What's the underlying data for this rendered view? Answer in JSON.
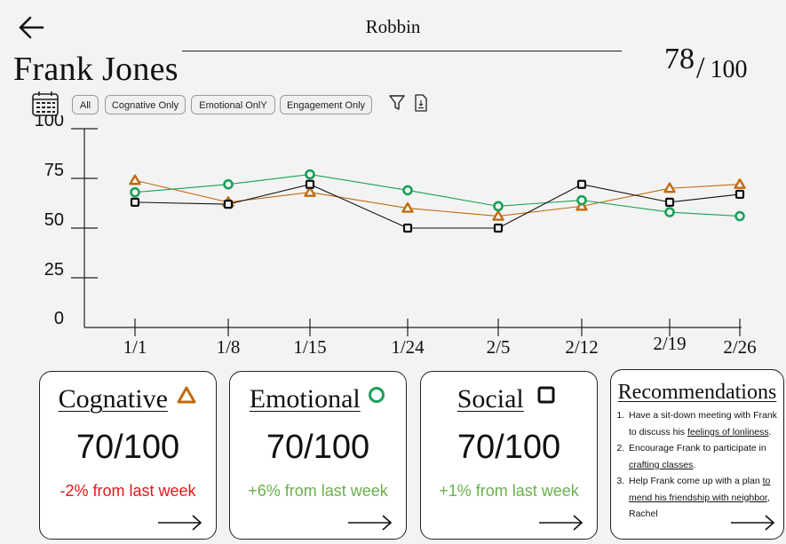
{
  "header": {
    "user_name": "Robbin",
    "patient_name": "Frank Jones",
    "score": {
      "value": "78",
      "slash": "/",
      "max": "100"
    }
  },
  "filters": [
    {
      "id": "all",
      "label": "All"
    },
    {
      "id": "cognitive",
      "label": "Cognative Only"
    },
    {
      "id": "emotional",
      "label": "Emotional OnlY"
    },
    {
      "id": "engagement",
      "label": "Engagement Only"
    }
  ],
  "icons": {
    "back": "arrow-left-icon",
    "calendar": "calendar-icon",
    "filter": "funnel-filter-icon",
    "export": "document-download-icon"
  },
  "colors": {
    "cognitive": "#c06a10",
    "emotional": "#1aa05a",
    "social": "#111111",
    "negative": "#e01818",
    "positive": "#6ab04c"
  },
  "chart_data": {
    "type": "line",
    "categories": [
      "1/1",
      "1/8",
      "1/15",
      "1/24",
      "2/5",
      "2/12",
      "2/19",
      "2/26"
    ],
    "ylim": [
      0,
      100
    ],
    "yticks": [
      100,
      75,
      50,
      25,
      0
    ],
    "grid": false,
    "series": [
      {
        "name": "Cognative",
        "marker": "triangle",
        "color": "#c06a10",
        "values": [
          74,
          63,
          68,
          60,
          56,
          61,
          70,
          72
        ]
      },
      {
        "name": "Emotional",
        "marker": "circle",
        "color": "#1aa05a",
        "values": [
          68,
          72,
          77,
          69,
          61,
          64,
          58,
          56
        ]
      },
      {
        "name": "Social",
        "marker": "square",
        "color": "#111111",
        "values": [
          63,
          62,
          72,
          50,
          50,
          72,
          63,
          67
        ]
      }
    ]
  },
  "cards": [
    {
      "title": "Cognative",
      "value": "70/100",
      "delta": "-2% from last week",
      "tone": "negative",
      "marker": "triangle"
    },
    {
      "title": "Emotional",
      "value": "70/100",
      "delta": "+6% from last week",
      "tone": "positive",
      "marker": "circle"
    },
    {
      "title": "Social",
      "value": "70/100",
      "delta": "+1% from last week",
      "tone": "positive",
      "marker": "square"
    }
  ],
  "recommendations": {
    "title": "Recommendations",
    "items": [
      {
        "pre": "Have a sit-down meeting with Frank to discuss his ",
        "link": "feelings of lonliness",
        "post": "."
      },
      {
        "pre": "Encourage Frank to participate in ",
        "link": "crafting classes",
        "post": "."
      },
      {
        "pre": "Help Frank come up with a plan ",
        "link": "to mend his friendship with neighbor",
        "post": ", Rachel"
      }
    ]
  }
}
